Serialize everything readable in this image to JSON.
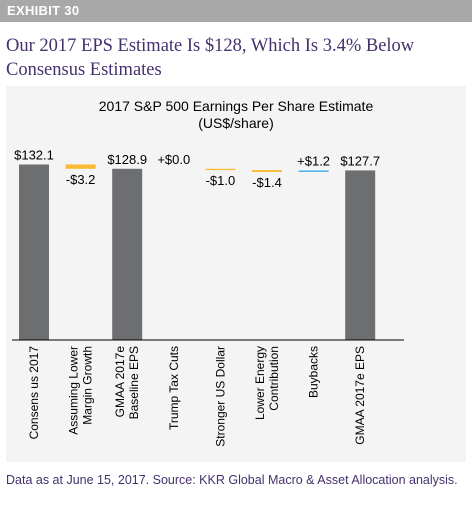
{
  "exhibit": {
    "label": "EXHIBIT 30"
  },
  "headline": "Our 2017 EPS Estimate Is $128, Which Is 3.4% Below Consensus Estimates",
  "footnote": "Data as at June 15, 2017. Source: KKR Global Macro & Asset Allocation analysis.",
  "chart_data": {
    "type": "bar",
    "subtype": "waterfall",
    "title": "2017 S&P 500 Earnings Per Share Estimate",
    "subtitle": "(US$/share)",
    "categories": [
      "Consens us 2017",
      "Assuming Lower Margin Growth",
      "GMAA 2017e Baseline EPS",
      "Trump Tax Cuts",
      "Stronger US Dollar",
      "Lower Energy Contribution",
      "Buybacks",
      "GMAA 2017e EPS"
    ],
    "category_lines": [
      [
        "Consens us 2017"
      ],
      [
        "Assuming Lower",
        "Margin Growth"
      ],
      [
        "GMAA 2017e",
        "Baseline EPS"
      ],
      [
        "Trump Tax Cuts"
      ],
      [
        "Stronger US Dollar"
      ],
      [
        "Lower Energy",
        "Contribution"
      ],
      [
        "Buybacks"
      ],
      [
        "GMAA 2017e EPS"
      ]
    ],
    "values": [
      132.1,
      -3.2,
      128.9,
      0.0,
      -1.0,
      -1.4,
      1.2,
      127.7
    ],
    "value_labels": [
      "$132.1",
      "-$3.2",
      "$128.9",
      "+$0.0",
      "-$1.0",
      "-$1.4",
      "+$1.2",
      "$127.7"
    ],
    "kinds": [
      "total",
      "delta",
      "total",
      "delta",
      "delta",
      "delta",
      "delta",
      "total"
    ],
    "ylim": [
      0,
      134
    ],
    "colors": {
      "total": "#6d6e70",
      "decrease": "#f9b934",
      "increase": "#52b6e8",
      "axis": "#000000"
    },
    "xlabel": "",
    "ylabel": "",
    "grid": false,
    "legend": "none"
  }
}
